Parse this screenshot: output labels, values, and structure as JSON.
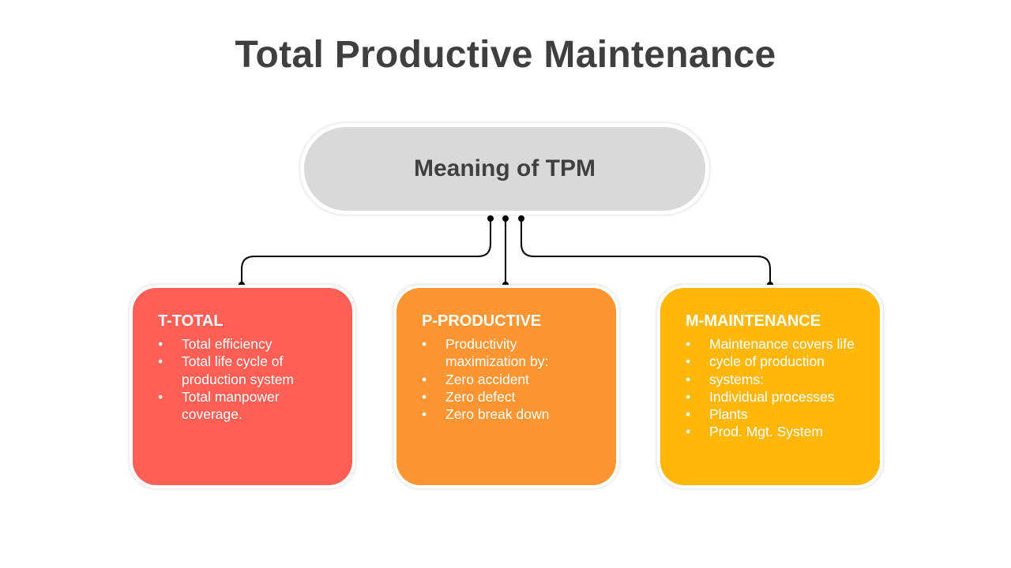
{
  "title": "Total Productive Maintenance",
  "hub": {
    "label": "Meaning of TPM",
    "color": "#d9d9d9"
  },
  "cards": [
    {
      "title": "T-TOTAL",
      "color": "#ff5f55",
      "items": [
        "Total efficiency",
        "Total life cycle of production system",
        "Total manpower coverage."
      ]
    },
    {
      "title": "P-PRODUCTIVE",
      "color": "#fd9632",
      "items": [
        "Productivity maximization by:",
        "Zero accident",
        "Zero defect",
        "Zero break down"
      ]
    },
    {
      "title": "M-MAINTENANCE",
      "color": "#ffb80a",
      "items": [
        "Maintenance covers life",
        "cycle of production",
        "systems:",
        "Individual processes",
        "Plants",
        "Prod. Mgt. System"
      ]
    }
  ]
}
